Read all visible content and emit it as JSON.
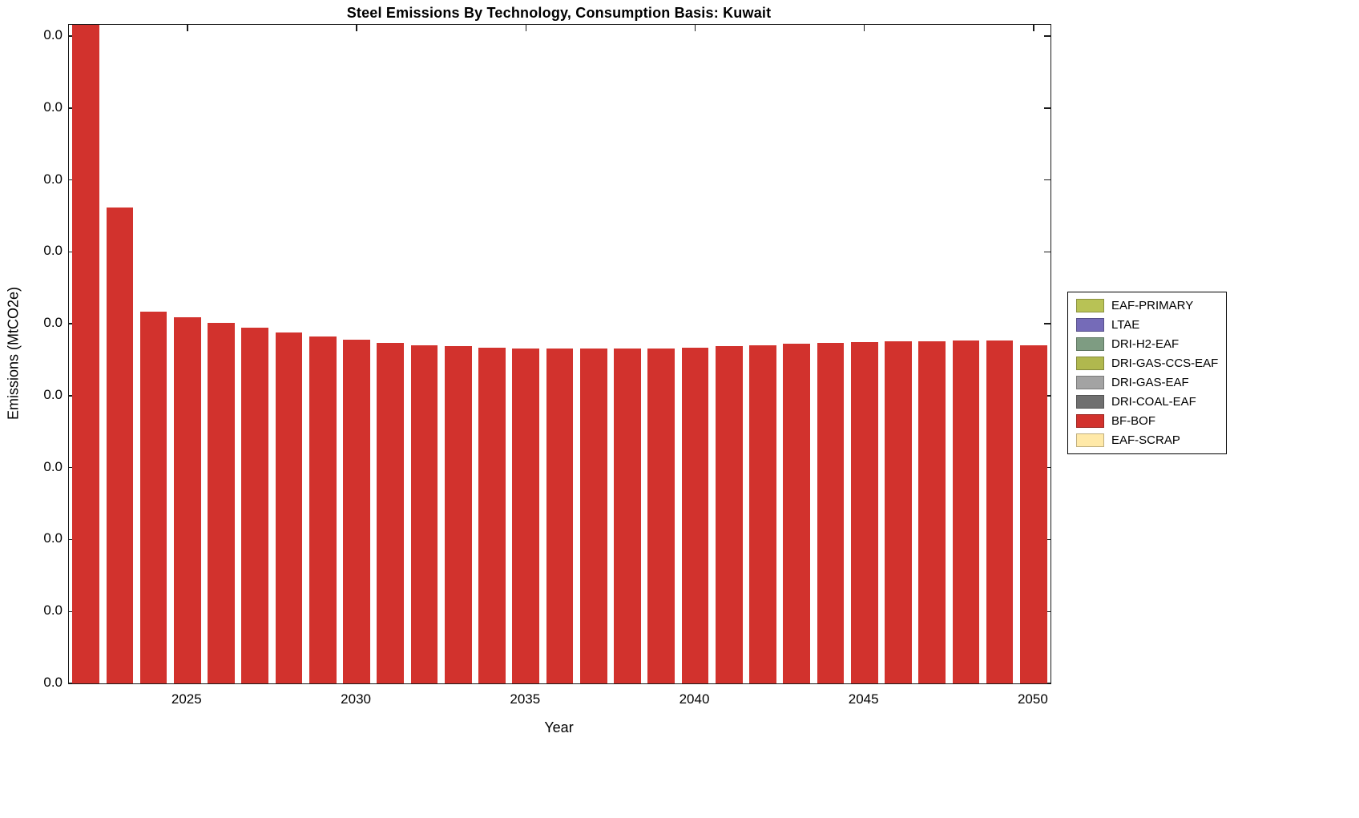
{
  "chart_data": {
    "type": "bar",
    "title": "Steel Emissions By Technology, Consumption Basis: Kuwait",
    "xlabel": "Year",
    "ylabel": "Emissions (MtCO2e)",
    "x": [
      2022,
      2023,
      2024,
      2025,
      2026,
      2027,
      2028,
      2029,
      2030,
      2031,
      2032,
      2033,
      2034,
      2035,
      2036,
      2037,
      2038,
      2039,
      2040,
      2041,
      2042,
      2043,
      2044,
      2045,
      2046,
      2047,
      2048,
      2049,
      2050
    ],
    "series": [
      {
        "name": "BF-BOF",
        "color": "#d2322d",
        "values": [
          1.05,
          0.723,
          0.564,
          0.556,
          0.547,
          0.54,
          0.533,
          0.527,
          0.522,
          0.517,
          0.514,
          0.512,
          0.51,
          0.509,
          0.508,
          0.508,
          0.508,
          0.509,
          0.51,
          0.512,
          0.514,
          0.516,
          0.517,
          0.518,
          0.519,
          0.52,
          0.521,
          0.521,
          0.514
        ]
      }
    ],
    "values_unit": "fraction of visible y-axis height (all y tick labels read 0.0; 2022 bar exceeds axis max and is clipped at top)",
    "ylim": [
      0,
      1
    ],
    "grid": false,
    "ytick_labels": [
      "0.0",
      "0.0",
      "0.0",
      "0.0",
      "0.0",
      "0.0",
      "0.0",
      "0.0",
      "0.0",
      "0.0"
    ],
    "xtick_labels": [
      "2025",
      "2030",
      "2035",
      "2040",
      "2045",
      "2050"
    ],
    "legend_position": "right-outside",
    "legend": [
      {
        "label": "EAF-PRIMARY",
        "color": "#b8c255"
      },
      {
        "label": "LTAE",
        "color": "#756bb8"
      },
      {
        "label": "DRI-H2-EAF",
        "color": "#7e9c82"
      },
      {
        "label": "DRI-GAS-CCS-EAF",
        "color": "#b0b84e"
      },
      {
        "label": "DRI-GAS-EAF",
        "color": "#a3a3a3"
      },
      {
        "label": "DRI-COAL-EAF",
        "color": "#6f6f6f"
      },
      {
        "label": "BF-BOF",
        "color": "#d2322d"
      },
      {
        "label": "EAF-SCRAP",
        "color": "#ffe9a8"
      }
    ]
  }
}
